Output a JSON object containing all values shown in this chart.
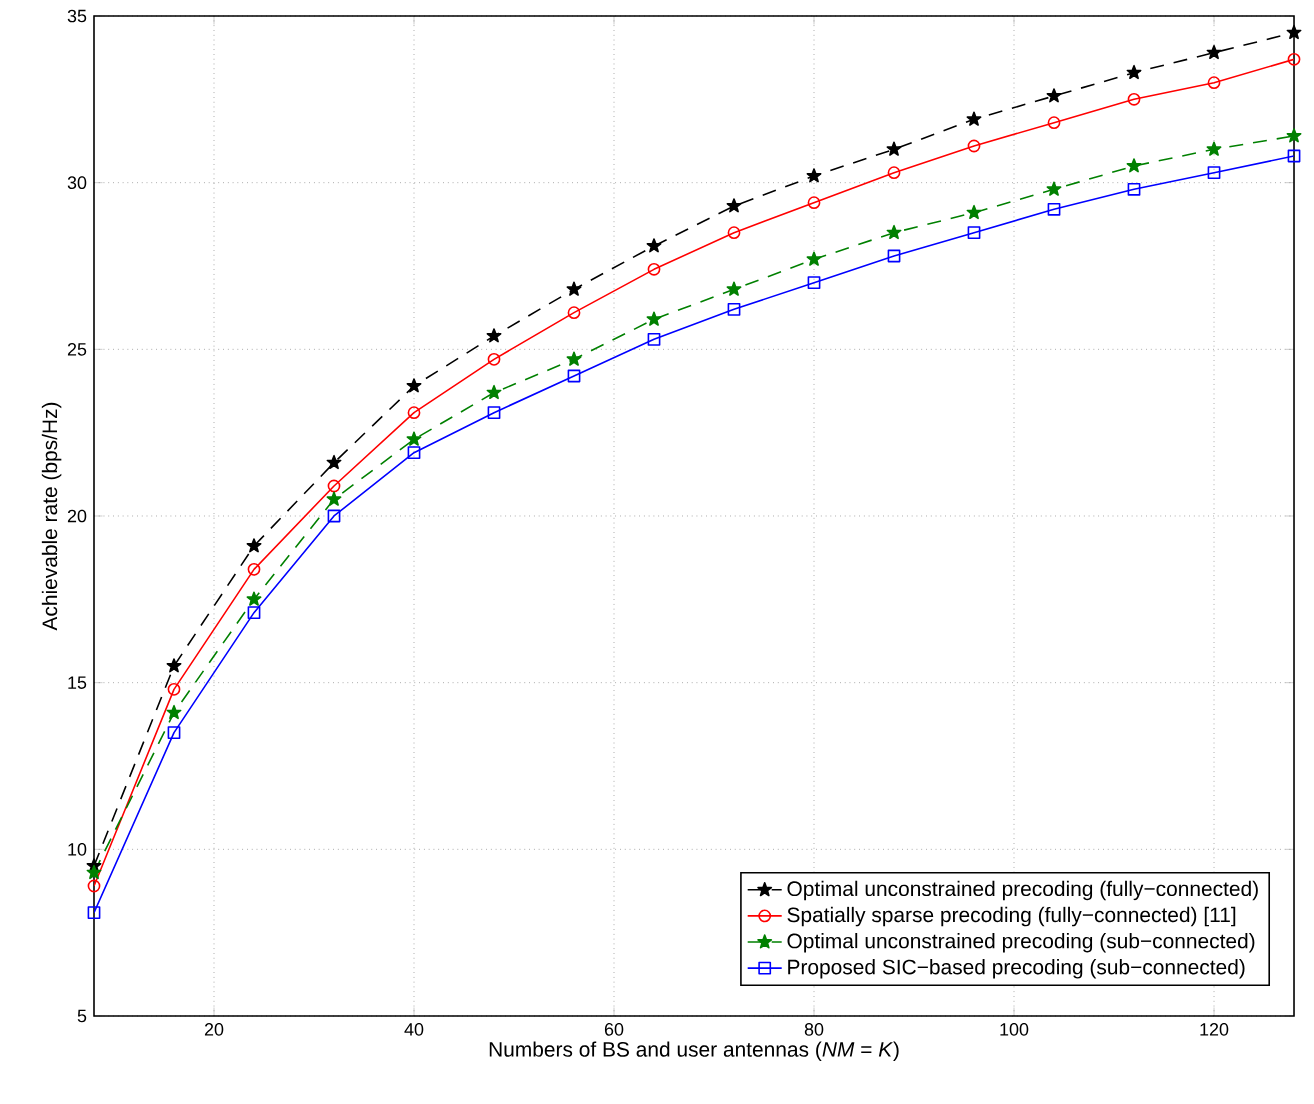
{
  "chart_data": {
    "type": "line",
    "xlabel": "Numbers of BS and user antennas (*NM* = *K*)",
    "ylabel": "Achievable rate (bps/Hz)",
    "x": [
      8,
      16,
      24,
      32,
      40,
      48,
      56,
      64,
      72,
      80,
      88,
      96,
      104,
      112,
      120,
      128
    ],
    "series": [
      {
        "name": "Optimal unconstrained precoding (fully−connected)",
        "color": "#000000",
        "marker": "star",
        "line_style": "dashed",
        "values": [
          9.5,
          15.5,
          19.1,
          21.6,
          23.9,
          25.4,
          26.8,
          28.1,
          29.3,
          30.2,
          31.0,
          31.9,
          32.6,
          33.3,
          33.9,
          34.5
        ]
      },
      {
        "name": "Spatially sparse precoding (fully−connected) [11]",
        "color": "#ff0000",
        "marker": "circle",
        "line_style": "solid",
        "values": [
          8.9,
          14.8,
          18.4,
          20.9,
          23.1,
          24.7,
          26.1,
          27.4,
          28.5,
          29.4,
          30.3,
          31.1,
          31.8,
          32.5,
          33.0,
          33.7
        ]
      },
      {
        "name": "Optimal unconstrained precoding (sub−connected)",
        "color": "#008000",
        "marker": "star",
        "line_style": "dashed",
        "values": [
          9.3,
          14.1,
          17.5,
          20.5,
          22.3,
          23.7,
          24.7,
          25.9,
          26.8,
          27.7,
          28.5,
          29.1,
          29.8,
          30.5,
          31.0,
          31.4
        ]
      },
      {
        "name": "Proposed SIC−based precoding (sub−connected)",
        "color": "#0000ff",
        "marker": "square",
        "line_style": "solid",
        "values": [
          8.1,
          13.5,
          17.1,
          20.0,
          21.9,
          23.1,
          24.2,
          25.3,
          26.2,
          27.0,
          27.8,
          28.5,
          29.2,
          29.8,
          30.3,
          30.8
        ]
      }
    ],
    "xlim": [
      8,
      128
    ],
    "ylim": [
      5,
      35
    ],
    "xticks": [
      20,
      40,
      60,
      80,
      100,
      120
    ],
    "yticks": [
      5,
      10,
      15,
      20,
      25,
      30,
      35
    ],
    "grid": true,
    "legend": "bottom right"
  }
}
